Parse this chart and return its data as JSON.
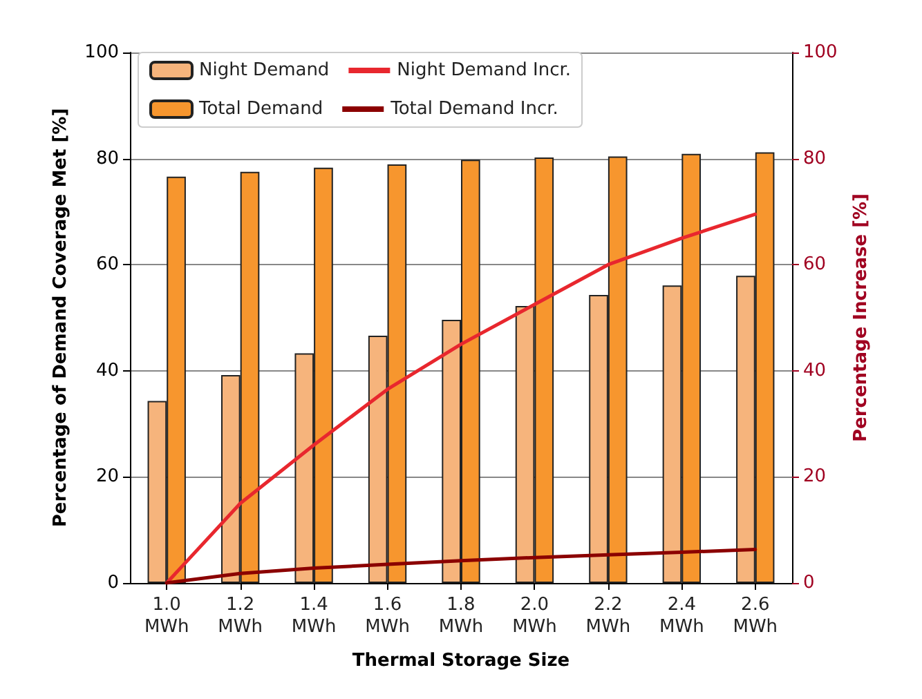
{
  "chart_data": {
    "type": "bar",
    "xlabel": "Thermal Storage Size",
    "ylabel": "Percentage of Demand Coverage Met [%]",
    "y2label": "Percentage Increase [%]",
    "categories": [
      "1.0 MWh",
      "1.2 MWh",
      "1.4 MWh",
      "1.6 MWh",
      "1.8 MWh",
      "2.0 MWh",
      "2.2 MWh",
      "2.4 MWh",
      "2.6 MWh"
    ],
    "series": [
      {
        "name": "Night Demand",
        "color": "#f6b47c",
        "values": [
          34.3,
          39.2,
          43.3,
          46.6,
          49.6,
          52.2,
          54.3,
          56.1,
          57.9
        ]
      },
      {
        "name": "Total Demand",
        "color": "#f7962e",
        "values": [
          76.6,
          77.5,
          78.3,
          78.9,
          79.8,
          80.2,
          80.4,
          80.9,
          81.2
        ]
      },
      {
        "name": "Night Demand Incr.",
        "type": "line",
        "axis": "y2",
        "color": "#e8272e",
        "values": [
          0,
          15,
          26,
          36.5,
          45,
          52.5,
          60,
          65,
          69.5
        ]
      },
      {
        "name": "Total Demand Incr.",
        "type": "line",
        "axis": "y2",
        "color": "#8b0000",
        "values": [
          0,
          1.8,
          2.8,
          3.5,
          4.2,
          4.8,
          5.3,
          5.8,
          6.3
        ]
      }
    ],
    "ylim": [
      0,
      100
    ],
    "yticks": [
      0,
      20,
      40,
      60,
      80,
      100
    ],
    "y2lim": [
      0,
      100
    ],
    "y2ticks": [
      0,
      20,
      40,
      60,
      80,
      100
    ],
    "grid": "y",
    "legend": "top left",
    "marker": "none"
  }
}
